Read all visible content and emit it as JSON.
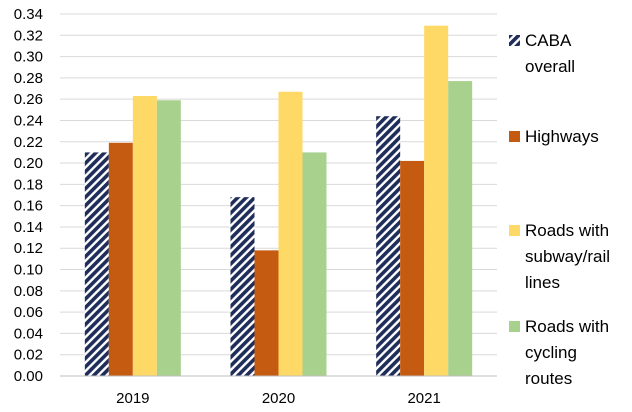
{
  "chart_data": {
    "type": "bar",
    "categories": [
      "2019",
      "2020",
      "2021"
    ],
    "series": [
      {
        "name": "CABA overall",
        "values": [
          0.21,
          0.168,
          0.244
        ],
        "color": "#1f2d5a",
        "pattern": "diagonal-stripes"
      },
      {
        "name": "Highways",
        "values": [
          0.219,
          0.118,
          0.202
        ],
        "color": "#c55a11"
      },
      {
        "name": "Roads with subway/rail lines",
        "values": [
          0.263,
          0.267,
          0.329
        ],
        "color": "#ffd966"
      },
      {
        "name": "Roads with cycling routes",
        "values": [
          0.259,
          0.21,
          0.277
        ],
        "color": "#a9d18e"
      }
    ],
    "ylim": [
      0,
      0.34
    ],
    "yticks": [
      "0.00",
      "0.02",
      "0.04",
      "0.06",
      "0.08",
      "0.10",
      "0.12",
      "0.14",
      "0.16",
      "0.18",
      "0.20",
      "0.22",
      "0.24",
      "0.26",
      "0.28",
      "0.30",
      "0.32",
      "0.34"
    ],
    "grid": true,
    "legend": {
      "position": "right",
      "entries": [
        {
          "lines": [
            "CABA",
            "overall"
          ]
        },
        {
          "lines": [
            "Highways"
          ]
        },
        {
          "lines": [
            "Roads with",
            "subway/rail",
            "lines"
          ]
        },
        {
          "lines": [
            "Roads with",
            "cycling",
            "routes"
          ]
        }
      ]
    },
    "title": "",
    "xlabel": "",
    "ylabel": ""
  }
}
